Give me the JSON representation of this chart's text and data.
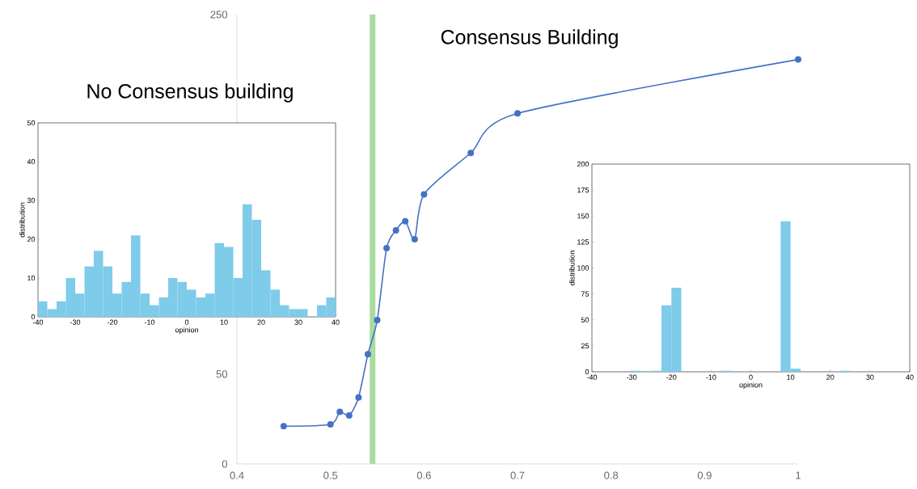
{
  "chart_data": [
    {
      "type": "line",
      "x": [
        0.45,
        0.5,
        0.51,
        0.52,
        0.53,
        0.54,
        0.55,
        0.56,
        0.57,
        0.58,
        0.59,
        0.6,
        0.65,
        0.7,
        1.0
      ],
      "values": [
        21,
        22,
        29,
        27,
        37,
        61,
        80,
        120,
        130,
        135,
        125,
        150,
        173,
        195,
        225
      ],
      "color": "#4472c4",
      "marker": "circle",
      "xlim": [
        0.4,
        1.0
      ],
      "xticks": [
        0.4,
        0.5,
        0.6,
        0.7,
        0.8,
        0.9,
        {
          "value": 1.0,
          "label": "1"
        }
      ],
      "ylim": [
        0,
        250
      ],
      "yticks": [
        0,
        50,
        250
      ],
      "ref_lines": [
        {
          "axis": "x",
          "value": 0.545,
          "color": "#a9dca0"
        }
      ],
      "annotations": [
        "No Consensus building",
        "Consensus Building"
      ]
    },
    {
      "type": "histogram",
      "color": "#7ecbea",
      "xlabel": "opinion",
      "ylabel": "distribution",
      "bins": [
        -40,
        -37.5,
        -35,
        -32.5,
        -30,
        -27.5,
        -25,
        -22.5,
        -20,
        -17.5,
        -15,
        -12.5,
        -10,
        -7.5,
        -5,
        -2.5,
        0,
        2.5,
        5,
        7.5,
        10,
        12.5,
        15,
        17.5,
        20,
        22.5,
        25,
        27.5,
        30,
        32.5,
        35,
        37.5,
        40
      ],
      "values": [
        4,
        2,
        4,
        10,
        6,
        13,
        17,
        13,
        6,
        9,
        21,
        6,
        3,
        5,
        10,
        9,
        7,
        5,
        6,
        19,
        18,
        10,
        29,
        25,
        12,
        7,
        3,
        2,
        2,
        0,
        3,
        5
      ],
      "xlim": [
        -40,
        40
      ],
      "xticks": [
        -40,
        -30,
        -20,
        -10,
        0,
        10,
        20,
        30,
        40
      ],
      "ylim": [
        0,
        50
      ],
      "yticks": [
        0,
        10,
        20,
        30,
        40,
        50
      ]
    },
    {
      "type": "histogram",
      "color": "#7ecbea",
      "xlabel": "opinion",
      "ylabel": "distribution",
      "bins": [
        -40,
        -37.5,
        -35,
        -32.5,
        -30,
        -27.5,
        -25,
        -22.5,
        -20,
        -17.5,
        -15,
        -12.5,
        -10,
        -7.5,
        -5,
        -2.5,
        0,
        2.5,
        5,
        7.5,
        10,
        12.5,
        15,
        17.5,
        20,
        22.5,
        25,
        27.5,
        30,
        32.5,
        35,
        37.5,
        40
      ],
      "values": [
        0,
        0,
        0,
        0,
        1,
        0,
        1,
        64,
        81,
        0,
        0,
        0,
        0,
        1,
        0,
        0,
        0,
        0,
        0,
        145,
        3,
        0,
        0,
        0,
        0,
        1,
        0,
        0,
        0,
        0,
        0,
        0
      ],
      "xlim": [
        -40,
        40
      ],
      "xticks": [
        -40,
        -30,
        -20,
        -10,
        0,
        10,
        20,
        30,
        40
      ],
      "ylim": [
        0,
        200
      ],
      "yticks": [
        0,
        25,
        50,
        75,
        100,
        125,
        150,
        175,
        200
      ]
    }
  ]
}
